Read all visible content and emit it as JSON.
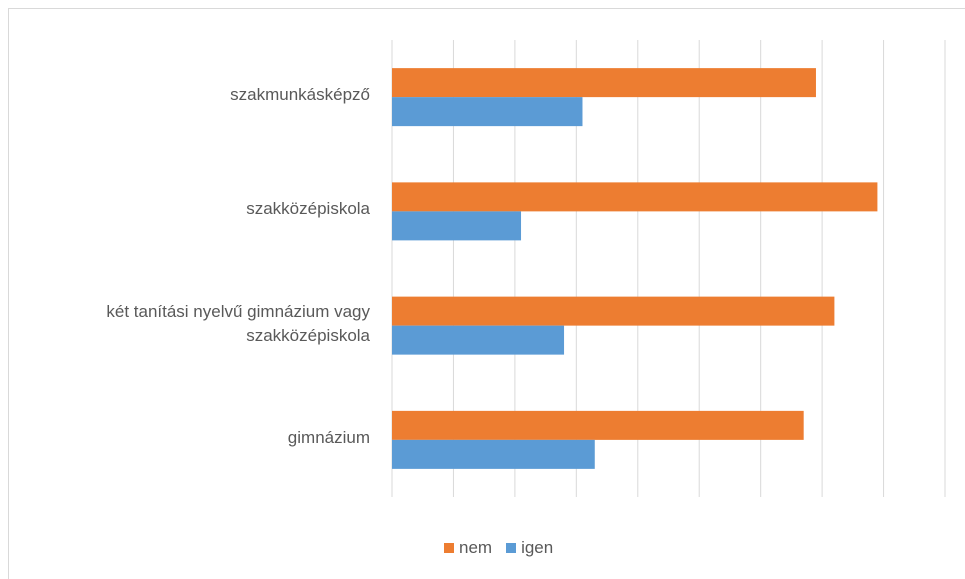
{
  "chart_data": {
    "type": "barh",
    "categories": [
      "szakmunkásképző",
      "szakközépiskola",
      "két tanítási nyelvű gimnázium vagy szakközépiskola",
      "gimnázium"
    ],
    "series": [
      {
        "name": "nem",
        "color": "#ed7d31",
        "values": [
          69,
          79,
          72,
          67
        ]
      },
      {
        "name": "igen",
        "color": "#5b9bd5",
        "values": [
          31,
          21,
          28,
          33
        ]
      }
    ],
    "xlim": [
      0,
      90
    ],
    "xticks": [
      0,
      10,
      20,
      30,
      40,
      50,
      60,
      70,
      80,
      90
    ],
    "grid": true,
    "legend": "bottom"
  }
}
